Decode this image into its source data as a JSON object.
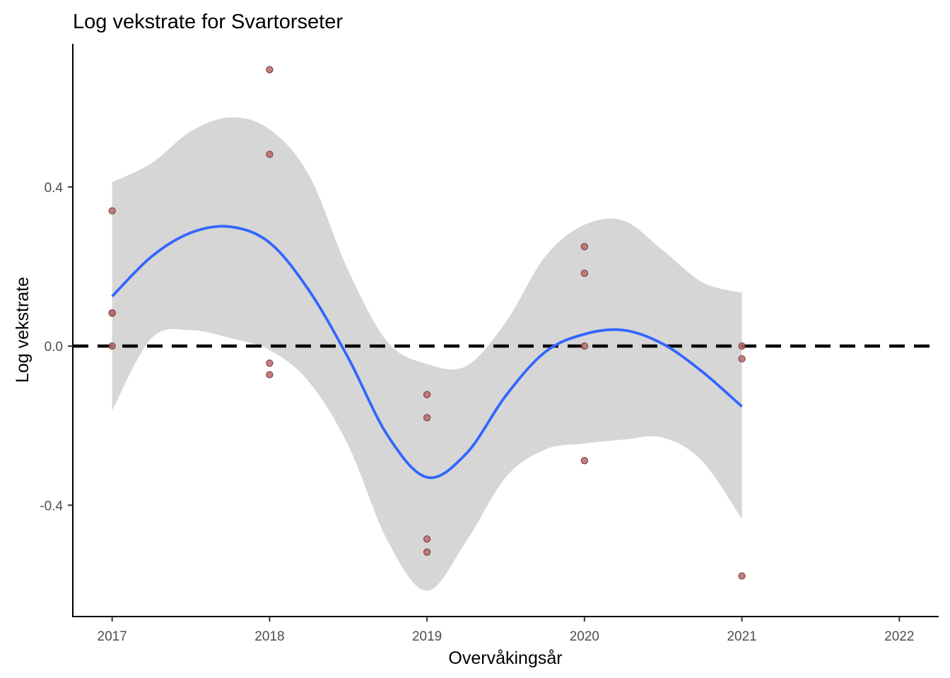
{
  "chart_data": {
    "type": "scatter",
    "title": "Log vekstrate for Svartorseter",
    "xlabel": "Overvåkingsår",
    "ylabel": "Log vekstrate",
    "xlim": [
      2016.75,
      2022.25
    ],
    "ylim": [
      -0.68,
      0.76
    ],
    "x_ticks": [
      2017,
      2018,
      2019,
      2020,
      2021,
      2022
    ],
    "x_tick_labels": [
      "2017",
      "2018",
      "2019",
      "2020",
      "2021",
      "2022"
    ],
    "y_ticks": [
      -0.4,
      0.0,
      0.4
    ],
    "y_tick_labels": [
      "-0.4",
      "0.0",
      "0.4"
    ],
    "grid": false,
    "reference_line": {
      "y": 0.0,
      "style": "dashed",
      "color": "#000000"
    },
    "points": [
      {
        "x": 2017,
        "y": 0.34
      },
      {
        "x": 2017,
        "y": 0.083
      },
      {
        "x": 2017,
        "y": 0.083
      },
      {
        "x": 2017,
        "y": 0.0
      },
      {
        "x": 2018,
        "y": 0.695
      },
      {
        "x": 2018,
        "y": 0.482
      },
      {
        "x": 2018,
        "y": -0.043
      },
      {
        "x": 2018,
        "y": -0.072
      },
      {
        "x": 2019,
        "y": -0.122
      },
      {
        "x": 2019,
        "y": -0.18
      },
      {
        "x": 2019,
        "y": -0.485
      },
      {
        "x": 2019,
        "y": -0.518
      },
      {
        "x": 2020,
        "y": 0.25
      },
      {
        "x": 2020,
        "y": 0.183
      },
      {
        "x": 2020,
        "y": 0.0
      },
      {
        "x": 2020,
        "y": -0.288
      },
      {
        "x": 2021,
        "y": 0.0
      },
      {
        "x": 2021,
        "y": -0.032
      },
      {
        "x": 2021,
        "y": -0.578
      }
    ],
    "smooth": {
      "x": [
        2017.0,
        2017.25,
        2017.5,
        2017.75,
        2018.0,
        2018.25,
        2018.5,
        2018.75,
        2019.0,
        2019.25,
        2019.5,
        2019.75,
        2020.0,
        2020.25,
        2020.5,
        2020.75,
        2021.0
      ],
      "y": [
        0.125,
        0.225,
        0.285,
        0.3,
        0.26,
        0.14,
        -0.03,
        -0.225,
        -0.33,
        -0.27,
        -0.125,
        -0.015,
        0.03,
        0.04,
        0.005,
        -0.065,
        -0.152
      ],
      "lower": [
        -0.162,
        0.02,
        0.04,
        0.02,
        -0.01,
        -0.09,
        -0.25,
        -0.49,
        -0.615,
        -0.49,
        -0.33,
        -0.26,
        -0.245,
        -0.235,
        -0.23,
        -0.29,
        -0.435
      ],
      "upper": [
        0.412,
        0.46,
        0.54,
        0.575,
        0.545,
        0.43,
        0.19,
        0.01,
        -0.045,
        -0.05,
        0.06,
        0.225,
        0.305,
        0.315,
        0.24,
        0.16,
        0.134
      ]
    },
    "colors": {
      "point_fill": "#b96b6b",
      "point_stroke": "#7a3232",
      "smooth_line": "#3366ff",
      "ribbon": "#d6d6d6",
      "reference_line": "#000000"
    }
  }
}
